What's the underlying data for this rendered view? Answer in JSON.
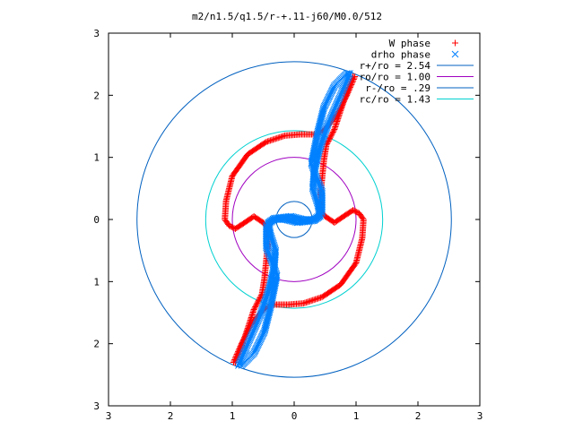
{
  "chart_data": {
    "type": "scatter",
    "title": "m2/n1.5/q1.5/r-+.11-j60/M0.0/512",
    "xlim": [
      -3,
      3
    ],
    "ylim": [
      -3,
      3
    ],
    "x_tick_labels": [
      "3",
      "2",
      "1",
      "0",
      "1",
      "2",
      "3"
    ],
    "y_tick_labels": [
      "3",
      "2",
      "1",
      "0",
      "1",
      "2",
      "3"
    ],
    "x_tick_values": [
      -3,
      -2,
      -1,
      0,
      1,
      2,
      3
    ],
    "y_tick_values": [
      -3,
      -2,
      -1,
      0,
      1,
      2,
      3
    ],
    "grid": false,
    "legend_position": "top-right",
    "series": [
      {
        "name": "W phase",
        "kind": "points",
        "marker": "+",
        "color": "#ff0000",
        "points": [
          [
            -0.98,
            -2.3
          ],
          [
            -0.85,
            -2.0
          ],
          [
            -0.7,
            -1.7
          ],
          [
            -0.5,
            -1.45
          ],
          [
            -0.35,
            -1.37
          ],
          [
            -0.1,
            -1.37
          ],
          [
            0.15,
            -1.35
          ],
          [
            0.45,
            -1.25
          ],
          [
            0.75,
            -1.05
          ],
          [
            1.0,
            -0.7
          ],
          [
            1.1,
            -0.3
          ],
          [
            1.12,
            0.0
          ],
          [
            1.05,
            0.1
          ],
          [
            0.95,
            0.15
          ],
          [
            0.8,
            0.05
          ],
          [
            0.65,
            -0.05
          ],
          [
            0.5,
            0.05
          ],
          [
            0.42,
            0.15
          ],
          [
            0.42,
            0.35
          ],
          [
            0.45,
            0.65
          ],
          [
            0.48,
            0.95
          ],
          [
            0.52,
            1.2
          ],
          [
            0.65,
            1.45
          ],
          [
            0.8,
            1.9
          ],
          [
            0.95,
            2.3
          ],
          [
            0.98,
            2.3
          ],
          [
            0.85,
            2.0
          ],
          [
            0.7,
            1.7
          ],
          [
            0.5,
            1.45
          ],
          [
            0.35,
            1.37
          ],
          [
            0.1,
            1.37
          ],
          [
            -0.15,
            1.35
          ],
          [
            -0.45,
            1.25
          ],
          [
            -0.75,
            1.05
          ],
          [
            -1.0,
            0.7
          ],
          [
            -1.1,
            0.3
          ],
          [
            -1.12,
            0.0
          ],
          [
            -1.05,
            -0.1
          ],
          [
            -0.95,
            -0.15
          ],
          [
            -0.8,
            -0.05
          ],
          [
            -0.65,
            0.05
          ],
          [
            -0.5,
            -0.05
          ],
          [
            -0.42,
            -0.15
          ],
          [
            -0.42,
            -0.35
          ],
          [
            -0.45,
            -0.65
          ],
          [
            -0.48,
            -0.95
          ],
          [
            -0.52,
            -1.2
          ],
          [
            -0.65,
            -1.45
          ],
          [
            -0.8,
            -1.9
          ],
          [
            -0.95,
            -2.3
          ]
        ]
      },
      {
        "name": "drho phase",
        "kind": "points",
        "marker": "x",
        "color": "#0080ff",
        "points": [
          [
            -0.9,
            -2.35
          ],
          [
            -0.75,
            -2.0
          ],
          [
            -0.55,
            -1.55
          ],
          [
            -0.4,
            -1.1
          ],
          [
            -0.32,
            -0.75
          ],
          [
            -0.3,
            -0.5
          ],
          [
            -0.38,
            -0.25
          ],
          [
            -0.42,
            -0.05
          ],
          [
            -0.32,
            0.02
          ],
          [
            -0.05,
            0.05
          ],
          [
            0.15,
            0.0
          ],
          [
            0.32,
            0.0
          ],
          [
            0.45,
            0.1
          ],
          [
            0.45,
            0.45
          ],
          [
            0.35,
            0.7
          ],
          [
            0.28,
            0.9
          ],
          [
            0.32,
            1.1
          ],
          [
            0.38,
            1.4
          ],
          [
            0.48,
            1.8
          ],
          [
            0.65,
            2.15
          ],
          [
            0.85,
            2.35
          ],
          [
            0.9,
            2.35
          ],
          [
            0.75,
            2.0
          ],
          [
            0.55,
            1.55
          ],
          [
            0.4,
            1.1
          ],
          [
            0.32,
            0.75
          ],
          [
            0.3,
            0.5
          ],
          [
            0.38,
            0.25
          ],
          [
            0.42,
            0.05
          ],
          [
            0.32,
            -0.02
          ],
          [
            0.05,
            -0.05
          ],
          [
            -0.15,
            0.0
          ],
          [
            -0.32,
            0.0
          ],
          [
            -0.45,
            -0.1
          ],
          [
            -0.45,
            -0.45
          ],
          [
            -0.35,
            -0.7
          ],
          [
            -0.28,
            -0.9
          ],
          [
            -0.32,
            -1.1
          ],
          [
            -0.38,
            -1.4
          ],
          [
            -0.48,
            -1.8
          ],
          [
            -0.65,
            -2.15
          ],
          [
            -0.85,
            -2.35
          ]
        ]
      },
      {
        "name": "r+/ro = 2.54",
        "kind": "circle",
        "radius": 2.54,
        "color": "#0060c0"
      },
      {
        "name": "ro/ro = 1.00",
        "kind": "circle",
        "radius": 1.0,
        "color": "#a000c0"
      },
      {
        "name": "r-/ro = .29",
        "kind": "circle",
        "radius": 0.29,
        "color": "#0060c0"
      },
      {
        "name": "rc/ro = 1.43",
        "kind": "circle",
        "radius": 1.43,
        "color": "#00d0d0"
      }
    ]
  }
}
